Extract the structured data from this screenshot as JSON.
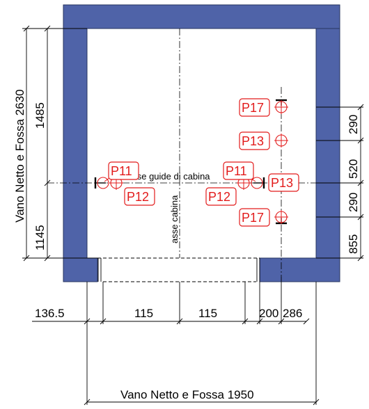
{
  "colors": {
    "wall": "#4f63a8",
    "wall_edge": "#27345f",
    "marker": "#e21b1b",
    "line": "#000000"
  },
  "labels": {
    "vano_vertical": "Vano Netto e Fossa 2630",
    "vano_horizontal": "Vano Netto e Fossa 1950",
    "asse_guide": "asse guide di cabina",
    "asse_cabina": "asse cabina"
  },
  "dimensions": {
    "left_upper": "1485",
    "left_lower": "1145",
    "right_1": "290",
    "right_2": "520",
    "right_3": "290",
    "right_4": "855",
    "bottom_1": "136.5",
    "bottom_2": "115",
    "bottom_3": "115",
    "bottom_4": "200",
    "bottom_5": "286"
  },
  "tags": {
    "p17_top": "P17",
    "p13_mid": "P13",
    "p11_left": "P11",
    "p12_left": "P12",
    "p11_right": "P11",
    "p13_right": "P13",
    "p12_right": "P12",
    "p17_bottom": "P17"
  }
}
